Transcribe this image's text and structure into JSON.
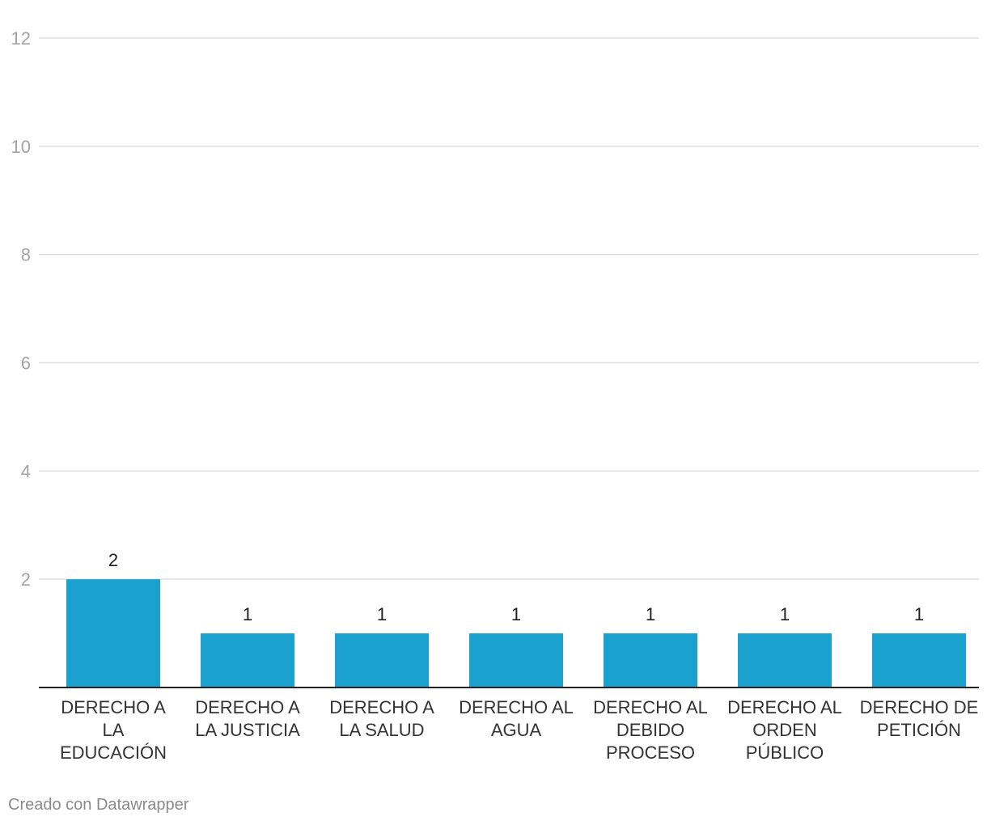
{
  "chart_data": {
    "type": "bar",
    "categories": [
      [
        "DERECHO A",
        "LA",
        "EDUCACIÓN"
      ],
      [
        "DERECHO A",
        "LA JUSTICIA"
      ],
      [
        "DERECHO A",
        "LA SALUD"
      ],
      [
        "DERECHO AL",
        "AGUA"
      ],
      [
        "DERECHO AL",
        "DEBIDO",
        "PROCESO"
      ],
      [
        "DERECHO AL",
        "ORDEN",
        "PÚBLICO"
      ],
      [
        "DERECHO DE",
        "PETICIÓN"
      ]
    ],
    "values": [
      2,
      1,
      1,
      1,
      1,
      1,
      1
    ],
    "ylim": [
      0,
      12
    ],
    "yticks": [
      2,
      4,
      6,
      8,
      10,
      12
    ],
    "grid": true,
    "bar_color": "#1ba1cd",
    "show_value_labels": true
  },
  "footer": {
    "credit": "Creado con Datawrapper"
  }
}
